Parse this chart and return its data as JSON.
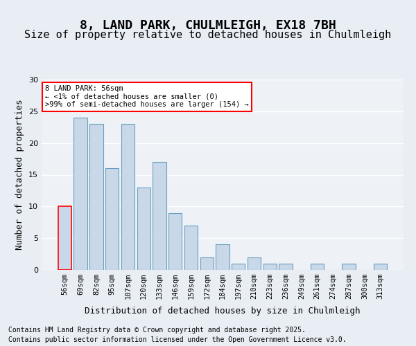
{
  "title": "8, LAND PARK, CHULMLEIGH, EX18 7BH",
  "subtitle": "Size of property relative to detached houses in Chulmleigh",
  "xlabel": "Distribution of detached houses by size in Chulmleigh",
  "ylabel": "Number of detached properties",
  "categories": [
    "56sqm",
    "69sqm",
    "82sqm",
    "95sqm",
    "107sqm",
    "120sqm",
    "133sqm",
    "146sqm",
    "159sqm",
    "172sqm",
    "184sqm",
    "197sqm",
    "210sqm",
    "223sqm",
    "236sqm",
    "249sqm",
    "261sqm",
    "274sqm",
    "287sqm",
    "300sqm",
    "313sqm"
  ],
  "values": [
    10,
    24,
    23,
    16,
    23,
    13,
    17,
    9,
    7,
    2,
    4,
    1,
    2,
    1,
    1,
    0,
    1,
    0,
    1,
    0,
    1
  ],
  "bar_color": "#c8d8e8",
  "bar_edge_color": "#6a9fc0",
  "highlight_bar_index": 0,
  "highlight_color": "#c8d8e8",
  "highlight_edge_color": "red",
  "ylim": [
    0,
    30
  ],
  "yticks": [
    0,
    5,
    10,
    15,
    20,
    25,
    30
  ],
  "annotation_text": "8 LAND PARK: 56sqm\n← <1% of detached houses are smaller (0)\n>99% of semi-detached houses are larger (154) →",
  "annotation_box_color": "white",
  "annotation_box_edge_color": "red",
  "footer_line1": "Contains HM Land Registry data © Crown copyright and database right 2025.",
  "footer_line2": "Contains public sector information licensed under the Open Government Licence v3.0.",
  "background_color": "#e8eef4",
  "plot_bg_color": "#eef2f7",
  "grid_color": "white",
  "title_fontsize": 13,
  "subtitle_fontsize": 11,
  "tick_fontsize": 7.5,
  "label_fontsize": 9,
  "footer_fontsize": 7
}
